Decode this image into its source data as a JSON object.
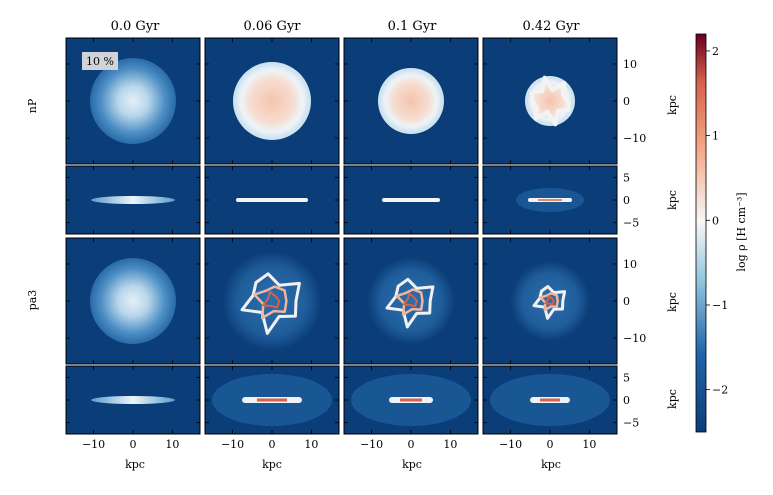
{
  "figure": {
    "column_titles": [
      "0.0 Gyr",
      "0.06 Gyr",
      "0.1 Gyr",
      "0.42 Gyr"
    ],
    "row_labels": [
      "nP",
      "pa3"
    ],
    "annotation": "10 %",
    "x_axis_label": "kpc",
    "y_axis_label": "kpc",
    "colorbar_label": "log ρ [H cm⁻³]",
    "colormap": "RdBu_r",
    "colors": {
      "background_low": "#0b3d78",
      "mid_white": "#f7f7f7",
      "high_red": "#8a1126"
    }
  },
  "chart_data": {
    "type": "heatmap",
    "panels_description": "Gas density projections, face-on (top) and edge-on (bottom) for two models at four times",
    "x_ticks": [
      -10,
      0,
      10
    ],
    "x_tick_labels": [
      "−10",
      "0",
      "10"
    ],
    "face_on_y_ticks": [
      10,
      0,
      -10
    ],
    "face_on_y_tick_labels": [
      "10",
      "0",
      "−10"
    ],
    "edge_on_y_ticks": [
      5,
      0,
      -5
    ],
    "edge_on_y_tick_labels": [
      "5",
      "0",
      "−5"
    ],
    "xlim": [
      -17,
      17
    ],
    "face_on_ylim": [
      -17,
      17
    ],
    "edge_on_ylim": [
      -7.5,
      7.5
    ],
    "colorbar": {
      "min": -2.5,
      "max": 2.2,
      "ticks": [
        2,
        1,
        0,
        -1,
        -2
      ],
      "tick_labels": [
        "2",
        "1",
        "0",
        "−1",
        "−2"
      ]
    }
  }
}
